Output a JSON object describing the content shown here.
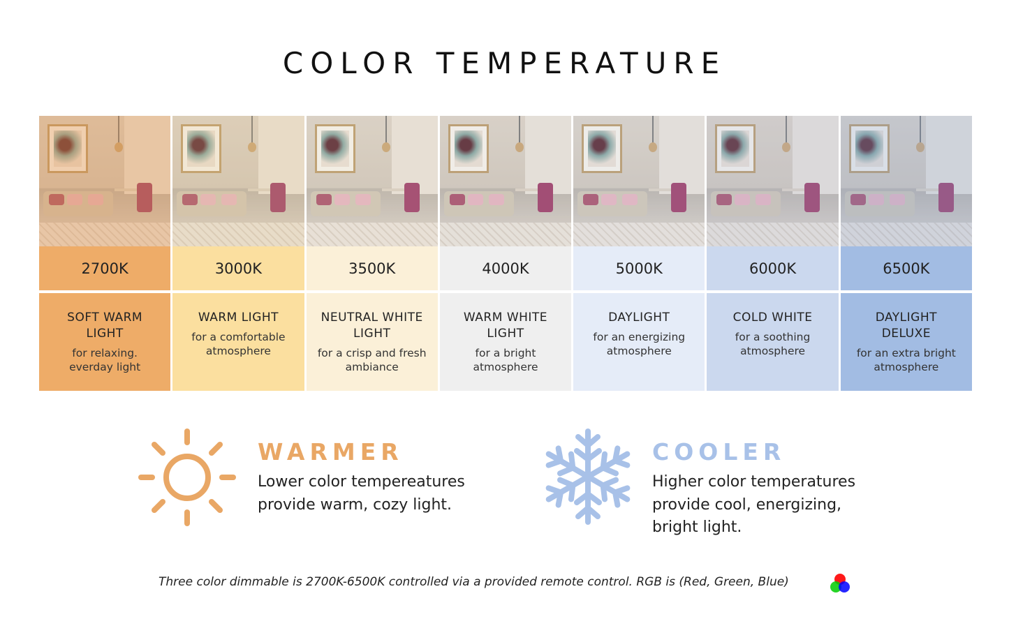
{
  "title": "COLOR TEMPERATURE",
  "columns": [
    {
      "kelvin": "2700K",
      "name": "SOFT WARM LIGHT",
      "sub": "for relaxing. everday light",
      "color": "#eeac68",
      "tint": "rgba(235,150,70,0.35)"
    },
    {
      "kelvin": "3000K",
      "name": "WARM LIGHT",
      "sub": "for a comfortable atmosphere",
      "color": "#fbdf9f",
      "tint": "rgba(240,200,130,0.2)"
    },
    {
      "kelvin": "3500K",
      "name": "NEUTRAL WHITE LIGHT",
      "sub": "for a crisp and fresh ambiance",
      "color": "#fbf0d8",
      "tint": "rgba(240,220,190,0.12)"
    },
    {
      "kelvin": "4000K",
      "name": "WARM WHITE LIGHT",
      "sub": "for a bright atmosphere",
      "color": "#efefef",
      "tint": "rgba(220,215,215,0.1)"
    },
    {
      "kelvin": "5000K",
      "name": "DAYLIGHT",
      "sub": "for an energizing atmosphere",
      "color": "#e5ecf8",
      "tint": "rgba(200,210,235,0.12)"
    },
    {
      "kelvin": "6000K",
      "name": "COLD WHITE",
      "sub": "for a soothing atmosphere",
      "color": "#cbd8ee",
      "tint": "rgba(170,190,230,0.18)"
    },
    {
      "kelvin": "6500K",
      "name": "DAYLIGHT DELUXE",
      "sub": "for an extra bright atmosphere",
      "color": "#a2bce3",
      "tint": "rgba(140,170,225,0.25)"
    }
  ],
  "warmer": {
    "heading": "WARMER",
    "text": "Lower color tempereatures provide warm, cozy light.",
    "color": "#e9a765",
    "icon": "sun-icon"
  },
  "cooler": {
    "heading": "COOLER",
    "text": "Higher color temperatures provide cool, energizing, bright light.",
    "color": "#a8c1e8",
    "icon": "snowflake-icon"
  },
  "footer": "Three color dimmable is 2700K-6500K controlled via a provided remote control. RGB is (Red, Green, Blue)"
}
